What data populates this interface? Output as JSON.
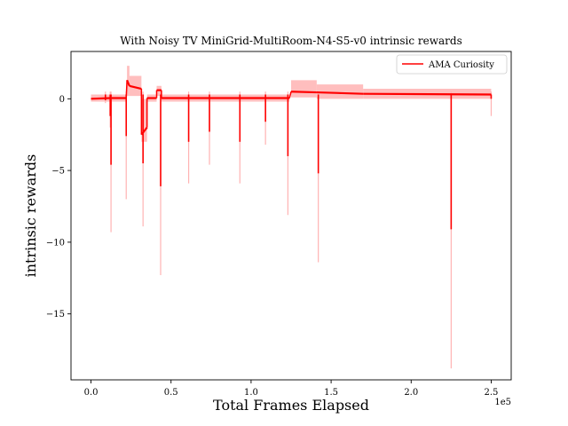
{
  "chart_data": {
    "type": "line",
    "title": "With Noisy TV MiniGrid-MultiRoom-N4-S5-v0 intrinsic rewards",
    "xlabel": "Total Frames Elapsed",
    "ylabel": "intrinsic rewards",
    "x_offset_label": "1e5",
    "xlim": [
      -12500,
      262500
    ],
    "ylim": [
      -19.6,
      3.3
    ],
    "x_ticks": [
      0,
      50000,
      100000,
      150000,
      200000,
      250000
    ],
    "x_tick_labels": [
      "0.0",
      "0.5",
      "1.0",
      "1.5",
      "2.0",
      "2.5"
    ],
    "y_ticks": [
      0,
      -5,
      -10,
      -15
    ],
    "y_tick_labels": [
      "0",
      "−5",
      "−10",
      "−15"
    ],
    "grid": false,
    "legend_position": "top-right",
    "colors": {
      "line": "#ff0000",
      "band": "#ffb3b3"
    },
    "series": [
      {
        "name": "AMA Curiosity",
        "segments": [
          {
            "x0": 0,
            "x1": 12000,
            "y0": 0.0,
            "y1": 0.05,
            "lo": -0.2,
            "hi": 0.3
          },
          {
            "x0": 13000,
            "x1": 22000,
            "y0": 0.05,
            "y1": 0.05,
            "lo": -0.2,
            "hi": 0.3
          },
          {
            "x0": 22500,
            "x1": 24000,
            "y0": 1.3,
            "y1": 0.9,
            "lo": 0.2,
            "hi": 2.3
          },
          {
            "x0": 24000,
            "x1": 31500,
            "y0": 0.9,
            "y1": 0.7,
            "lo": 0.2,
            "hi": 1.6
          },
          {
            "x0": 31500,
            "x1": 35000,
            "y0": -2.5,
            "y1": -2.0,
            "lo": -3.0,
            "hi": 0.0
          },
          {
            "x0": 35000,
            "x1": 41000,
            "y0": 0.05,
            "y1": 0.05,
            "lo": -0.2,
            "hi": 0.3
          },
          {
            "x0": 41000,
            "x1": 44000,
            "y0": 0.6,
            "y1": 0.6,
            "lo": 0.2,
            "hi": 0.9
          },
          {
            "x0": 44000,
            "x1": 124000,
            "y0": 0.05,
            "y1": 0.05,
            "lo": -0.2,
            "hi": 0.3
          },
          {
            "x0": 125000,
            "x1": 141000,
            "y0": 0.5,
            "y1": 0.45,
            "lo": 0.1,
            "hi": 1.3
          },
          {
            "x0": 141000,
            "x1": 170000,
            "y0": 0.45,
            "y1": 0.35,
            "lo": 0.0,
            "hi": 1.0
          },
          {
            "x0": 170000,
            "x1": 250000,
            "y0": 0.35,
            "y1": 0.3,
            "lo": 0.0,
            "hi": 0.7
          }
        ],
        "spikes": [
          {
            "x": 9000,
            "y": -0.1,
            "low": -0.3
          },
          {
            "x": 12500,
            "y": -4.6,
            "low": -9.3
          },
          {
            "x": 12000,
            "y": -1.2,
            "low": -2.0
          },
          {
            "x": 22000,
            "y": -2.6,
            "low": -7.0
          },
          {
            "x": 32500,
            "y": -4.5,
            "low": -8.9
          },
          {
            "x": 43500,
            "y": -6.1,
            "low": -12.3
          },
          {
            "x": 61000,
            "y": -3.0,
            "low": -5.9
          },
          {
            "x": 74000,
            "y": -2.3,
            "low": -4.6
          },
          {
            "x": 93000,
            "y": -3.0,
            "low": -5.9
          },
          {
            "x": 109000,
            "y": -1.6,
            "low": -3.2
          },
          {
            "x": 123000,
            "y": -4.0,
            "low": -8.1
          },
          {
            "x": 142000,
            "y": -5.2,
            "low": -11.4
          },
          {
            "x": 225000,
            "y": -9.1,
            "low": -18.8
          },
          {
            "x": 250000,
            "y": 0.0,
            "low": -1.2
          }
        ]
      }
    ]
  }
}
